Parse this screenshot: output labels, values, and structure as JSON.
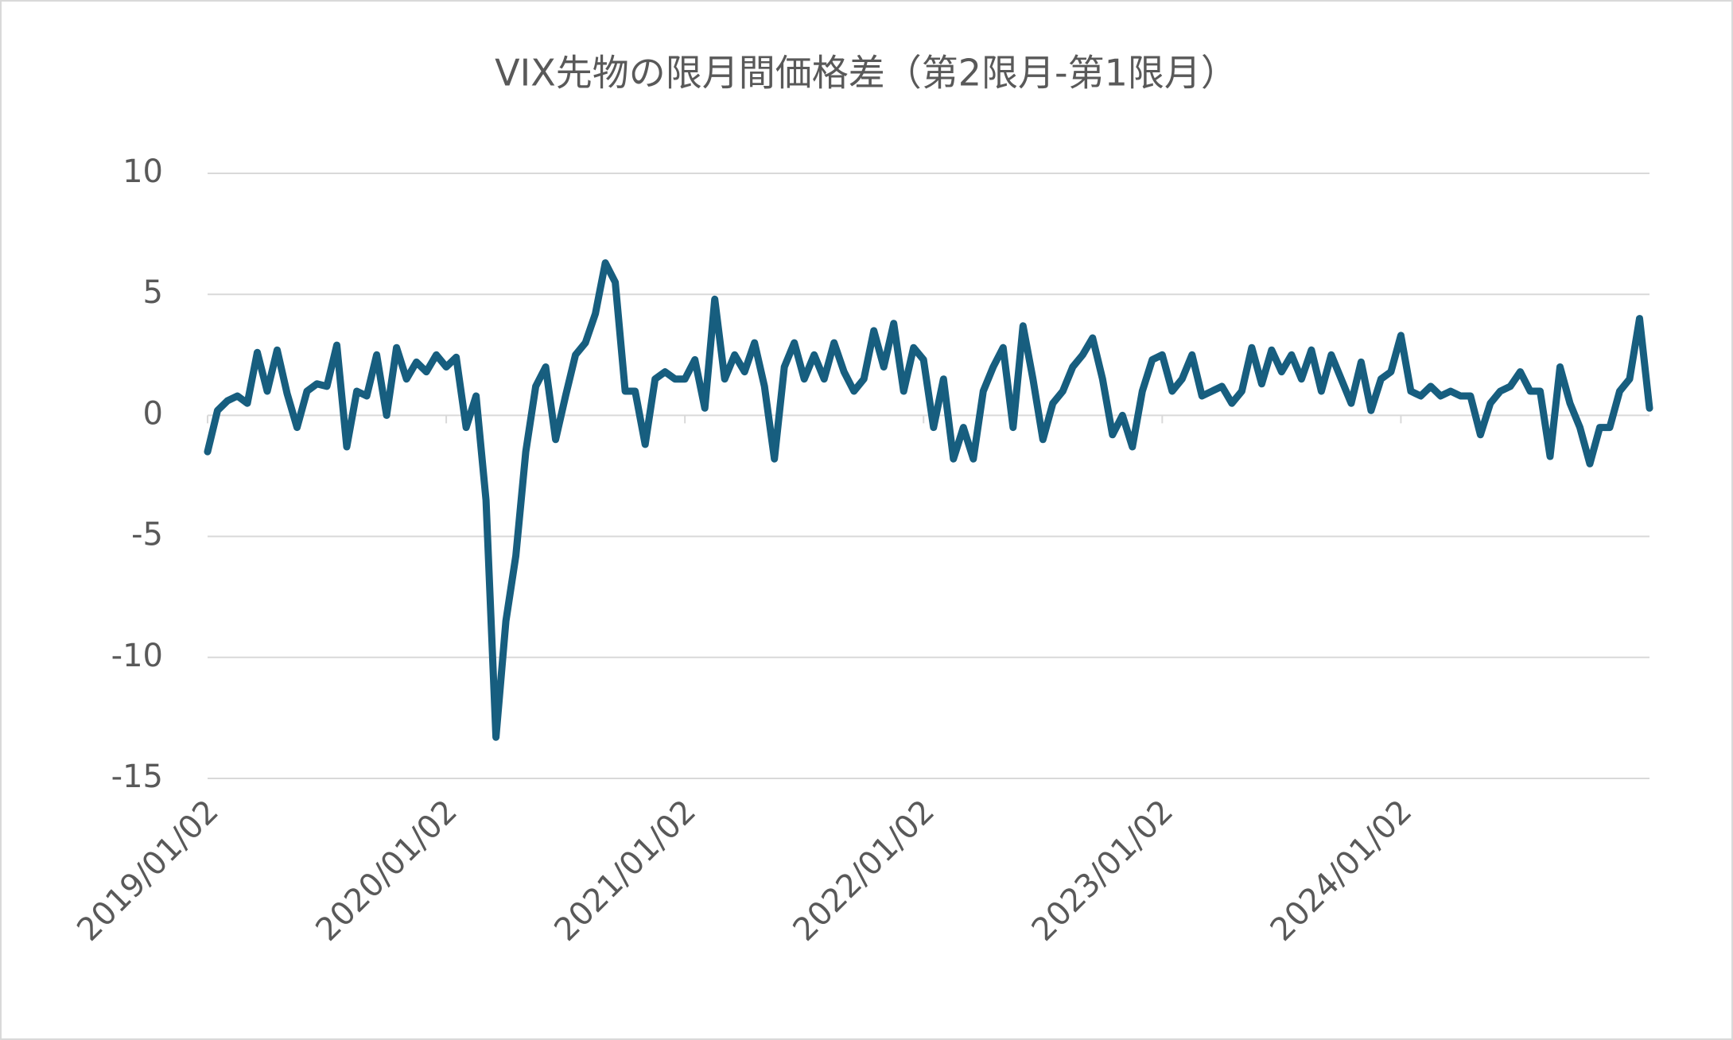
{
  "chart_data": {
    "type": "line",
    "title": "VIX先物の限月間価格差（第2限月-第1限月）",
    "categories": [
      "2019/01/02",
      null,
      null,
      null,
      null,
      null,
      null,
      null,
      null,
      null,
      null,
      null,
      null,
      null,
      null,
      null,
      null,
      null,
      null,
      null,
      null,
      null,
      null,
      null,
      "2020/01/02",
      null,
      null,
      null,
      null,
      null,
      null,
      null,
      null,
      null,
      null,
      null,
      null,
      null,
      null,
      null,
      null,
      null,
      null,
      null,
      null,
      null,
      null,
      null,
      "2021/01/02",
      null,
      null,
      null,
      null,
      null,
      null,
      null,
      null,
      null,
      null,
      null,
      null,
      null,
      null,
      null,
      null,
      null,
      null,
      null,
      null,
      null,
      null,
      null,
      "2022/01/02",
      null,
      null,
      null,
      null,
      null,
      null,
      null,
      null,
      null,
      null,
      null,
      null,
      null,
      null,
      null,
      null,
      null,
      null,
      null,
      null,
      null,
      null,
      null,
      "2023/01/02",
      null,
      null,
      null,
      null,
      null,
      null,
      null,
      null,
      null,
      null,
      null,
      null,
      null,
      null,
      null,
      null,
      null,
      null,
      null,
      null,
      null,
      null,
      null,
      "2024/01/02",
      null,
      null,
      null,
      null,
      null,
      null,
      null,
      null,
      null,
      null,
      null,
      null,
      null,
      null,
      null,
      null,
      null,
      null,
      null,
      null,
      null,
      null,
      null,
      null,
      null
    ],
    "values": [
      -1.5,
      0.2,
      0.6,
      0.8,
      0.5,
      2.6,
      1.0,
      2.7,
      0.9,
      -0.5,
      1.0,
      1.3,
      1.2,
      2.9,
      -1.3,
      1.0,
      0.8,
      2.5,
      0.0,
      2.8,
      1.5,
      2.2,
      1.8,
      2.5,
      2.0,
      2.4,
      -0.5,
      0.8,
      -3.5,
      -13.3,
      -8.5,
      -5.8,
      -1.5,
      1.2,
      2.0,
      -1.0,
      0.8,
      2.5,
      3.0,
      4.2,
      6.3,
      5.5,
      1.0,
      1.0,
      -1.2,
      1.5,
      1.8,
      1.5,
      1.5,
      2.3,
      0.3,
      4.8,
      1.5,
      2.5,
      1.8,
      3.0,
      1.2,
      -1.8,
      2.0,
      3.0,
      1.5,
      2.5,
      1.5,
      3.0,
      1.8,
      1.0,
      1.5,
      3.5,
      2.0,
      3.8,
      1.0,
      2.8,
      2.3,
      -0.5,
      1.5,
      -1.8,
      -0.5,
      -1.8,
      1.0,
      2.0,
      2.8,
      -0.5,
      3.7,
      1.5,
      -1.0,
      0.5,
      1.0,
      2.0,
      2.5,
      3.2,
      1.5,
      -0.8,
      0.0,
      -1.3,
      1.0,
      2.3,
      2.5,
      1.0,
      1.5,
      2.5,
      0.8,
      1.0,
      1.2,
      0.5,
      1.0,
      2.8,
      1.3,
      2.7,
      1.8,
      2.5,
      1.5,
      2.7,
      1.0,
      2.5,
      1.5,
      0.5,
      2.2,
      0.2,
      1.5,
      1.8,
      3.3,
      1.0,
      0.8,
      1.2,
      0.8,
      1.0,
      0.8,
      0.8,
      -0.8,
      0.5,
      1.0,
      1.2,
      1.8,
      1.0,
      1.0,
      -1.7,
      2.0,
      0.5,
      -0.5,
      -2.0,
      -0.5,
      -0.5,
      1.0,
      1.5,
      4.0,
      0.3
    ],
    "color": "#175e7f",
    "ylim": [
      -15,
      10
    ],
    "yticks": [
      -15,
      -10,
      -5,
      0,
      5,
      10
    ],
    "grid": true
  }
}
